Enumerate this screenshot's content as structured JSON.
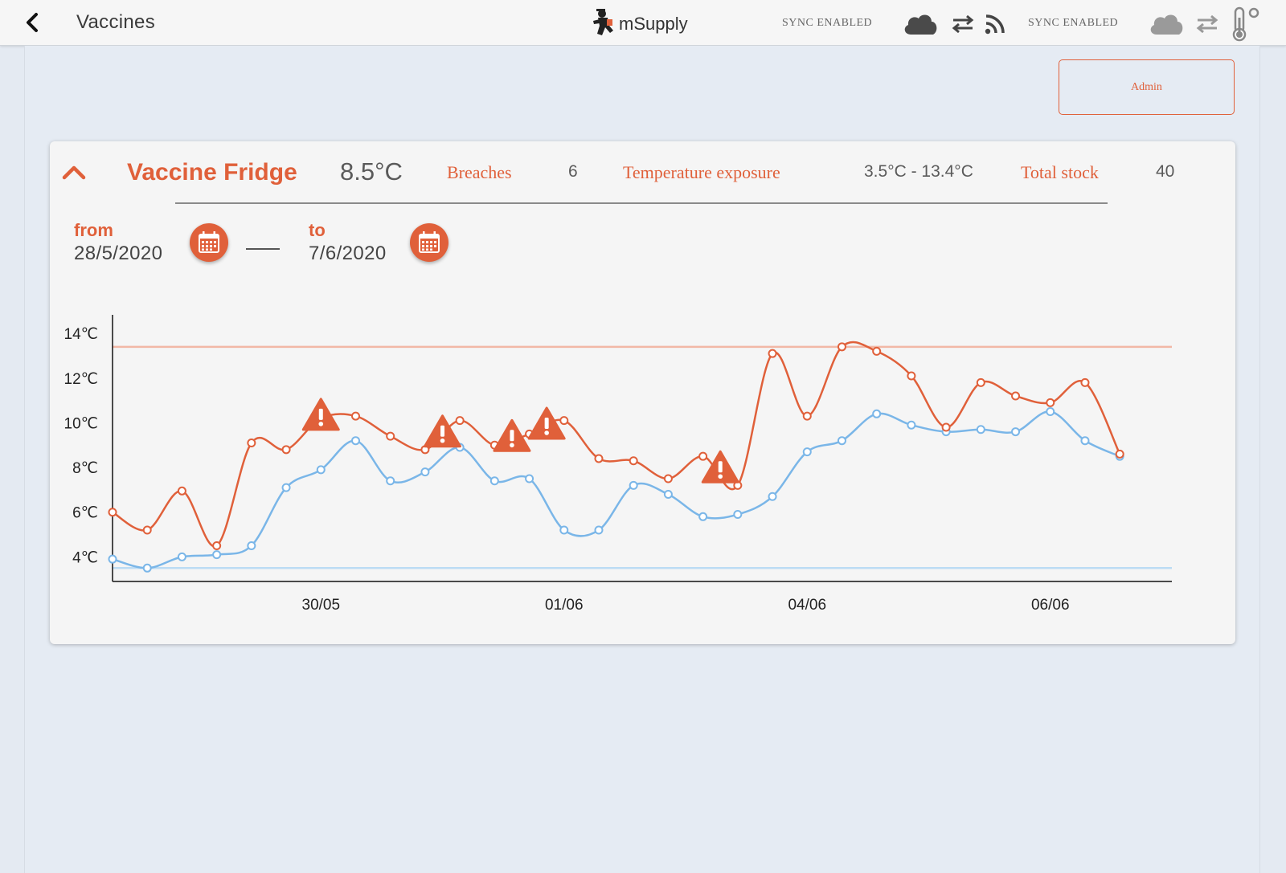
{
  "header": {
    "title": "Vaccines",
    "logo_text": "mSupply",
    "sync_status_1": "SYNC ENABLED",
    "sync_status_2": "SYNC ENABLED"
  },
  "admin": {
    "label": "Admin"
  },
  "fridge": {
    "name": "Vaccine Fridge",
    "current_temp": "8.5°C",
    "breaches_label": "Breaches",
    "breaches_value": "6",
    "exposure_label": "Temperature exposure",
    "exposure_value": "3.5°C - 13.4°C",
    "stock_label": "Total stock",
    "stock_value": "40"
  },
  "date_range": {
    "from_label": "from",
    "from_value": "28/5/2020",
    "to_label": "to",
    "to_value": "7/6/2020"
  },
  "colors": {
    "accent": "#e0603a",
    "max_series": "#e0603a",
    "min_series": "#7ab6e8",
    "upper_threshold": "#f2b8a6",
    "lower_threshold": "#bcdcf4"
  },
  "chart_data": {
    "type": "line",
    "xlabel": "",
    "ylabel": "",
    "x_ticks": [
      {
        "x": 6,
        "label": "30/05"
      },
      {
        "x": 13,
        "label": "01/06"
      },
      {
        "x": 20,
        "label": "04/06"
      },
      {
        "x": 27,
        "label": "06/06"
      }
    ],
    "y_ticks": [
      "4℃",
      "6℃",
      "8℃",
      "10℃",
      "12℃",
      "14℃"
    ],
    "y_tick_values": [
      4,
      6,
      8,
      10,
      12,
      14
    ],
    "xlim": [
      0,
      30.5
    ],
    "ylim": [
      2.9,
      14.4
    ],
    "thresholds": {
      "upper": 13.4,
      "lower": 3.5
    },
    "series": [
      {
        "key": "max",
        "values": [
          6.0,
          5.2,
          6.95,
          4.5,
          9.1,
          8.8,
          10.2,
          10.3,
          9.4,
          8.8,
          10.1,
          9.0,
          9.5,
          10.1,
          8.4,
          8.3,
          7.5,
          8.5,
          7.2,
          13.1,
          10.3,
          13.4,
          13.2,
          12.1,
          9.8,
          11.8,
          11.2,
          10.9,
          11.8,
          8.6
        ]
      },
      {
        "key": "min",
        "values": [
          3.9,
          3.5,
          4.0,
          4.1,
          4.5,
          7.1,
          7.9,
          9.2,
          7.4,
          7.8,
          8.9,
          7.4,
          7.5,
          5.2,
          5.2,
          7.2,
          6.8,
          5.8,
          5.9,
          6.7,
          8.7,
          9.2,
          10.4,
          9.9,
          9.6,
          9.7,
          9.6,
          10.5,
          9.2,
          8.5
        ]
      }
    ],
    "breach_markers": [
      6,
      9.5,
      11.5,
      12.5,
      17.5
    ]
  }
}
